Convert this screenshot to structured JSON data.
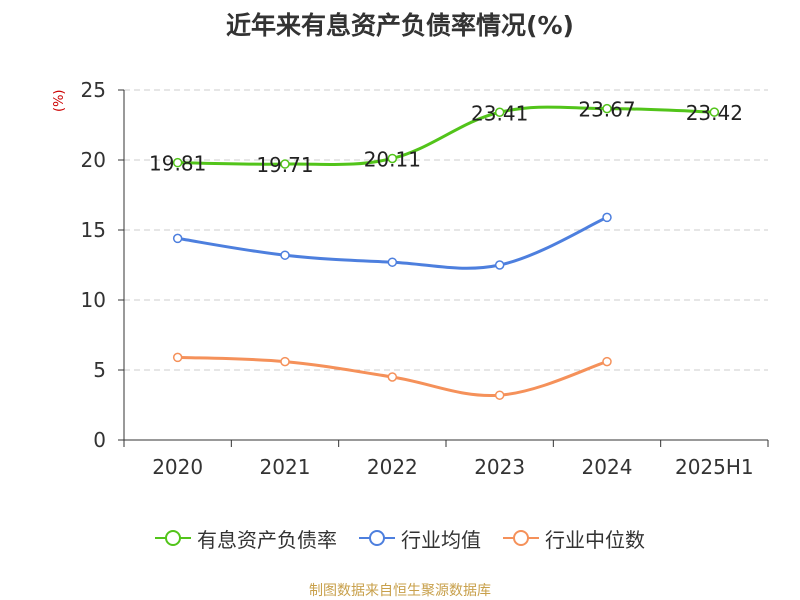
{
  "chart_data": {
    "type": "line",
    "title": "近年来有息资产负债率情况(%)",
    "ylabel": "(%)",
    "categories": [
      "2020",
      "2021",
      "2022",
      "2023",
      "2024",
      "2025H1"
    ],
    "ylim": [
      0,
      25
    ],
    "yticks": [
      0,
      5,
      10,
      15,
      20,
      25
    ],
    "grid": true,
    "legend_position": "bottom",
    "series": [
      {
        "name": "有息资产负债率",
        "color": "#52c41a",
        "show_labels": true,
        "values": [
          19.81,
          19.71,
          20.11,
          23.41,
          23.67,
          23.42
        ]
      },
      {
        "name": "行业均值",
        "color": "#4d7fde",
        "show_labels": false,
        "values": [
          14.4,
          13.2,
          12.7,
          12.5,
          15.9,
          null
        ]
      },
      {
        "name": "行业中位数",
        "color": "#f5915a",
        "show_labels": false,
        "values": [
          5.9,
          5.6,
          4.5,
          3.2,
          5.6,
          null
        ]
      }
    ],
    "data_labels": [
      "19.81",
      "19.71",
      "20.11",
      "23.41",
      "23.67",
      "23.42"
    ]
  },
  "footer": {
    "source": "制图数据来自恒生聚源数据库"
  }
}
